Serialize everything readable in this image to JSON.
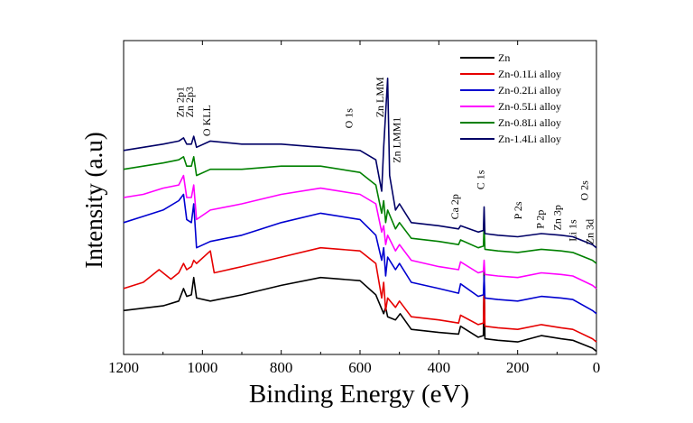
{
  "chart_data": {
    "type": "line",
    "title": "",
    "xlabel": "Binding Energy (eV)",
    "ylabel": "Intensity (a.u)",
    "xlim": [
      1200,
      0
    ],
    "x_reversed": true,
    "ylim": [
      0,
      10
    ],
    "y_ticks_shown": false,
    "grid": false,
    "legend_position": "top-right",
    "x_ticks": [
      "1200",
      "1000",
      "800",
      "600",
      "400",
      "200",
      "0"
    ],
    "x_tick_values": [
      1200,
      1000,
      800,
      600,
      400,
      200,
      0
    ],
    "series": [
      {
        "name": "Zn",
        "color": "#000000",
        "x": [
          1200,
          1100,
          1060,
          1048,
          1040,
          1028,
          1022,
          1015,
          980,
          900,
          800,
          700,
          600,
          560,
          540,
          535,
          530,
          510,
          498,
          470,
          400,
          350,
          345,
          300,
          287,
          285,
          283,
          250,
          200,
          140,
          90,
          60,
          10,
          0
        ],
        "y": [
          1.4,
          1.55,
          1.7,
          2.1,
          1.85,
          1.9,
          2.45,
          1.8,
          1.7,
          1.9,
          2.2,
          2.45,
          2.35,
          1.9,
          1.3,
          1.5,
          1.2,
          1.1,
          1.3,
          0.8,
          0.7,
          0.65,
          0.9,
          0.55,
          0.6,
          2.9,
          0.5,
          0.45,
          0.4,
          0.6,
          0.5,
          0.45,
          0.2,
          0.1
        ]
      },
      {
        "name": "Zn-0.1Li alloy",
        "color": "#e60000",
        "x": [
          1200,
          1150,
          1110,
          1080,
          1060,
          1048,
          1040,
          1028,
          1022,
          1015,
          980,
          970,
          900,
          800,
          700,
          600,
          560,
          545,
          540,
          535,
          530,
          510,
          500,
          470,
          400,
          350,
          345,
          300,
          287,
          285,
          283,
          250,
          200,
          140,
          90,
          60,
          10,
          0
        ],
        "y": [
          2.1,
          2.3,
          2.7,
          2.4,
          2.6,
          2.9,
          2.7,
          2.8,
          3.0,
          2.9,
          3.3,
          2.6,
          2.8,
          3.1,
          3.4,
          3.3,
          2.9,
          1.8,
          2.3,
          1.4,
          1.8,
          1.5,
          1.7,
          1.2,
          1.1,
          1.0,
          1.25,
          0.95,
          1.0,
          2.2,
          0.9,
          0.85,
          0.8,
          0.95,
          0.85,
          0.8,
          0.5,
          0.4
        ]
      },
      {
        "name": "Zn-0.2Li alloy",
        "color": "#0000d0",
        "x": [
          1200,
          1150,
          1100,
          1060,
          1048,
          1040,
          1028,
          1022,
          1015,
          980,
          900,
          800,
          700,
          600,
          560,
          545,
          540,
          535,
          530,
          510,
          500,
          470,
          400,
          350,
          345,
          300,
          287,
          285,
          283,
          250,
          200,
          140,
          90,
          60,
          10,
          0
        ],
        "y": [
          4.2,
          4.4,
          4.6,
          4.9,
          5.1,
          4.3,
          4.2,
          4.8,
          3.4,
          3.6,
          3.8,
          4.2,
          4.5,
          4.3,
          3.8,
          3.0,
          3.4,
          2.5,
          3.1,
          2.7,
          2.9,
          2.3,
          2.1,
          1.95,
          2.25,
          1.85,
          1.9,
          2.5,
          1.8,
          1.75,
          1.7,
          1.85,
          1.8,
          1.75,
          1.4,
          1.3
        ]
      },
      {
        "name": "Zn-0.5Li alloy",
        "color": "#ff00ff",
        "x": [
          1200,
          1150,
          1100,
          1060,
          1048,
          1040,
          1028,
          1022,
          1015,
          980,
          900,
          800,
          700,
          600,
          560,
          545,
          540,
          535,
          530,
          510,
          500,
          470,
          400,
          350,
          345,
          300,
          287,
          285,
          283,
          250,
          200,
          140,
          90,
          60,
          10,
          0
        ],
        "y": [
          5.0,
          5.1,
          5.3,
          5.4,
          5.7,
          5.0,
          5.0,
          5.4,
          4.3,
          4.6,
          4.8,
          5.1,
          5.3,
          5.1,
          4.8,
          3.9,
          4.1,
          3.5,
          3.8,
          3.3,
          3.5,
          3.0,
          2.8,
          2.7,
          2.95,
          2.6,
          2.65,
          3.0,
          2.55,
          2.5,
          2.45,
          2.6,
          2.55,
          2.5,
          2.2,
          2.1
        ]
      },
      {
        "name": "Zn-0.8Li alloy",
        "color": "#008000",
        "x": [
          1200,
          1150,
          1100,
          1060,
          1048,
          1040,
          1028,
          1022,
          1015,
          980,
          900,
          800,
          700,
          600,
          560,
          545,
          540,
          535,
          530,
          510,
          500,
          470,
          400,
          350,
          345,
          300,
          287,
          285,
          283,
          250,
          200,
          140,
          90,
          60,
          10,
          0
        ],
        "y": [
          5.9,
          6.0,
          6.1,
          6.2,
          6.3,
          6.0,
          6.0,
          6.3,
          5.7,
          5.9,
          5.9,
          6.0,
          6.0,
          5.8,
          5.4,
          4.5,
          4.9,
          4.2,
          4.6,
          4.0,
          4.2,
          3.7,
          3.6,
          3.5,
          3.65,
          3.4,
          3.45,
          4.1,
          3.35,
          3.3,
          3.25,
          3.35,
          3.3,
          3.25,
          3.0,
          2.9
        ]
      },
      {
        "name": "Zn-1.4Li alloy",
        "color": "#000066",
        "x": [
          1200,
          1150,
          1100,
          1060,
          1048,
          1040,
          1028,
          1022,
          1015,
          980,
          900,
          800,
          700,
          600,
          560,
          545,
          540,
          535,
          530,
          525,
          510,
          500,
          470,
          400,
          350,
          345,
          300,
          287,
          285,
          283,
          250,
          200,
          140,
          90,
          60,
          10,
          0
        ],
        "y": [
          6.5,
          6.6,
          6.7,
          6.8,
          6.9,
          6.7,
          6.7,
          6.95,
          6.6,
          6.8,
          6.7,
          6.7,
          6.6,
          6.5,
          6.2,
          5.2,
          6.6,
          7.7,
          8.8,
          5.7,
          4.6,
          4.8,
          4.2,
          4.1,
          4.0,
          4.1,
          3.9,
          3.95,
          4.7,
          3.85,
          3.8,
          3.75,
          3.85,
          3.8,
          3.75,
          3.5,
          3.4
        ]
      }
    ],
    "annotations": [
      {
        "label": "Zn 2p1",
        "x": 1048,
        "y": 7.55,
        "rotate": true
      },
      {
        "label": "Zn 2p3",
        "x": 1024,
        "y": 7.55,
        "rotate": true
      },
      {
        "label": "O KLL",
        "x": 980,
        "y": 6.95,
        "rotate": true
      },
      {
        "label": "O 1s",
        "x": 620,
        "y": 7.2,
        "rotate": true
      },
      {
        "label": "Zn LMM",
        "x": 540,
        "y": 7.55,
        "rotate": true
      },
      {
        "label": "Zn LMM1",
        "x": 498,
        "y": 6.1,
        "rotate": true
      },
      {
        "label": "Ca 2p",
        "x": 350,
        "y": 4.3,
        "rotate": true
      },
      {
        "label": "C 1s",
        "x": 285,
        "y": 5.25,
        "rotate": true
      },
      {
        "label": "P 2s",
        "x": 190,
        "y": 4.3,
        "rotate": true
      },
      {
        "label": "P 2p",
        "x": 134,
        "y": 4.0,
        "rotate": true
      },
      {
        "label": "Zn 3p",
        "x": 90,
        "y": 3.95,
        "rotate": true
      },
      {
        "label": "Li 1s",
        "x": 52,
        "y": 3.6,
        "rotate": true
      },
      {
        "label": "O 2s",
        "x": 22,
        "y": 4.9,
        "rotate": true
      },
      {
        "label": "Zn 3d",
        "x": 8,
        "y": 3.5,
        "rotate": true
      }
    ]
  }
}
